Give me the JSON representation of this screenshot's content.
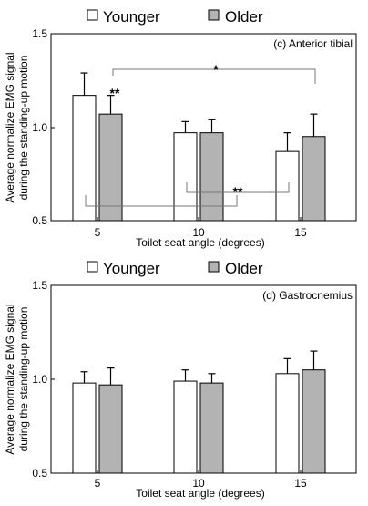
{
  "chart_data": [
    {
      "type": "bar",
      "panel_label": "(c) Anterior tibial",
      "categories": [
        "5",
        "10",
        "15"
      ],
      "xlabel": "Toilet seat angle (degrees)",
      "ylabel_line1": "Average normalize EMG signal",
      "ylabel_line2": "during the standing-up motion",
      "ylim": [
        0.5,
        1.5
      ],
      "yticks": [
        "0.5",
        "1.0",
        "1.5"
      ],
      "series": [
        {
          "name": "Younger",
          "values": [
            1.17,
            0.97,
            0.87
          ],
          "errors": [
            0.12,
            0.06,
            0.1
          ],
          "color": "#ffffff"
        },
        {
          "name": "Older",
          "values": [
            1.07,
            0.97,
            0.95
          ],
          "errors": [
            0.1,
            0.07,
            0.12
          ],
          "color": "#b3b3b3"
        }
      ],
      "significance": [
        {
          "label": "**"
        },
        {
          "label": "*"
        },
        {
          "label": "**"
        }
      ]
    },
    {
      "type": "bar",
      "panel_label": "(d) Gastrocnemius",
      "categories": [
        "5",
        "10",
        "15"
      ],
      "xlabel": "Toilet seat angle (degrees)",
      "ylabel_line1": "Average normalize EMG signal",
      "ylabel_line2": "during the standing-up motion",
      "ylim": [
        0.5,
        1.5
      ],
      "yticks": [
        "0.5",
        "1.0",
        "1.5"
      ],
      "series": [
        {
          "name": "Younger",
          "values": [
            0.98,
            0.99,
            1.03
          ],
          "errors": [
            0.06,
            0.06,
            0.08
          ],
          "color": "#ffffff"
        },
        {
          "name": "Older",
          "values": [
            0.97,
            0.98,
            1.05
          ],
          "errors": [
            0.09,
            0.05,
            0.1
          ],
          "color": "#b3b3b3"
        }
      ]
    }
  ]
}
